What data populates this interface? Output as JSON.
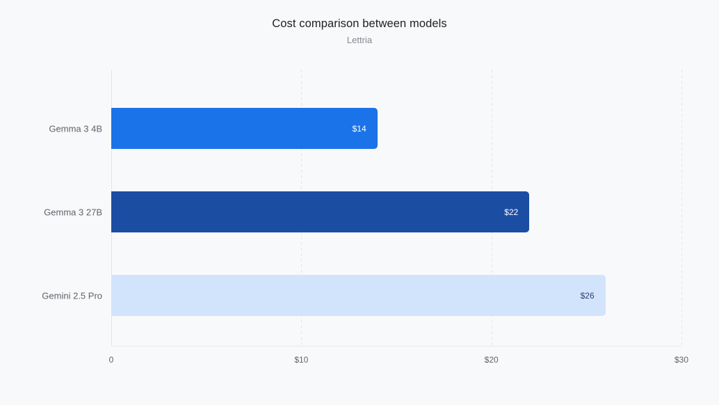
{
  "chart_data": {
    "type": "bar",
    "orientation": "horizontal",
    "title": "Cost comparison between models",
    "subtitle": "Lettria",
    "categories": [
      "Gemma 3 4B",
      "Gemma 3 27B",
      "Gemini 2.5 Pro"
    ],
    "values": [
      14,
      22,
      26
    ],
    "value_labels": [
      "$14",
      "$22",
      "$26"
    ],
    "bar_colors": [
      "#1a73e8",
      "#1b4da3",
      "#d2e3fc"
    ],
    "value_label_colors": [
      "#ffffff",
      "#ffffff",
      "#2e4372"
    ],
    "xlabel": "",
    "ylabel": "",
    "xlim": [
      0,
      30
    ],
    "x_ticks": [
      0,
      10,
      20,
      30
    ],
    "x_tick_labels": [
      "0",
      "$10",
      "$20",
      "$30"
    ],
    "grid": "dashed-vertical-gridlines",
    "legend": "none",
    "background_color": "#f8f9fb"
  }
}
